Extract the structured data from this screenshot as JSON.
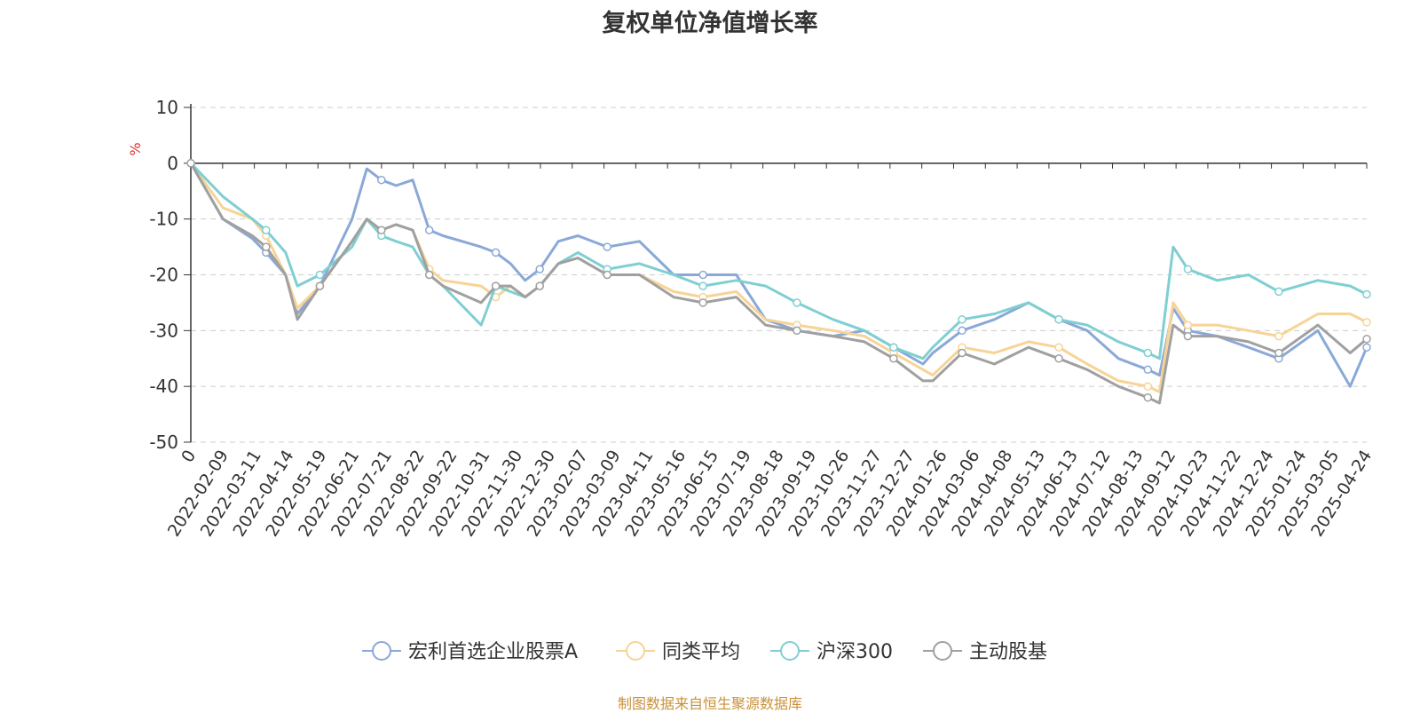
{
  "title": "复权单位净值增长率",
  "source": "制图数据来自恒生聚源数据库",
  "chart_data": {
    "type": "line",
    "title": "复权单位净值增长率",
    "ylabel": "%",
    "ylim": [
      -50,
      10
    ],
    "yticks": [
      10,
      0,
      -10,
      -20,
      -30,
      -40,
      -50
    ],
    "grid": true,
    "legend_position": "bottom-center",
    "xlim": [
      "2022-01-07",
      "2025-04-24"
    ],
    "x_tick_labels": [
      "0",
      "2022-02-09",
      "2022-03-11",
      "2022-04-14",
      "2022-05-19",
      "2022-06-21",
      "2022-07-21",
      "2022-08-22",
      "2022-09-22",
      "2022-10-31",
      "2022-11-30",
      "2022-12-30",
      "2023-02-07",
      "2023-03-09",
      "2023-04-11",
      "2023-05-16",
      "2023-06-15",
      "2023-07-19",
      "2023-08-18",
      "2023-09-19",
      "2023-10-26",
      "2023-11-27",
      "2023-12-27",
      "2024-01-26",
      "2024-03-06",
      "2024-04-08",
      "2024-05-13",
      "2024-06-13",
      "2024-07-12",
      "2024-08-13",
      "2024-09-12",
      "2024-10-23",
      "2024-11-22",
      "2024-12-24",
      "2025-01-24",
      "2025-03-05",
      "2025-04-24"
    ],
    "x": [
      "2022-01-07",
      "2022-02-09",
      "2022-03-11",
      "2022-03-25",
      "2022-04-14",
      "2022-04-26",
      "2022-05-19",
      "2022-06-21",
      "2022-07-06",
      "2022-07-21",
      "2022-08-05",
      "2022-08-22",
      "2022-09-08",
      "2022-09-22",
      "2022-10-31",
      "2022-11-15",
      "2022-11-30",
      "2022-12-15",
      "2022-12-30",
      "2023-01-18",
      "2023-02-07",
      "2023-03-09",
      "2023-04-11",
      "2023-05-16",
      "2023-06-15",
      "2023-07-19",
      "2023-08-18",
      "2023-09-19",
      "2023-10-26",
      "2023-11-27",
      "2023-12-27",
      "2024-01-26",
      "2024-02-05",
      "2024-03-06",
      "2024-04-08",
      "2024-05-13",
      "2024-06-13",
      "2024-07-12",
      "2024-08-13",
      "2024-09-12",
      "2024-09-24",
      "2024-10-08",
      "2024-10-23",
      "2024-11-22",
      "2024-12-24",
      "2025-01-24",
      "2025-03-05",
      "2025-04-07",
      "2025-04-24"
    ],
    "series": [
      {
        "name": "宏利首选企业股票A",
        "color": "#8aa8d8",
        "values": [
          0,
          -10,
          -13.5,
          -16,
          -20,
          -27,
          -22,
          -10,
          -1,
          -3,
          -4,
          -3,
          -12,
          -13,
          -15,
          -16,
          -18,
          -21,
          -19,
          -14,
          -13,
          -15,
          -14,
          -20,
          -20,
          -20,
          -28,
          -30,
          -31,
          -30,
          -33,
          -36,
          -34,
          -30,
          -28,
          -25,
          -28,
          -30,
          -35,
          -37,
          -38,
          -26,
          -30,
          -31,
          -33,
          -35,
          -30,
          -40,
          -33
        ]
      },
      {
        "name": "同类平均",
        "color": "#f7d396",
        "values": [
          0,
          -8,
          -10,
          -13,
          -20,
          -26,
          -22,
          -14,
          -10,
          -12,
          -11,
          -12,
          -19,
          -21,
          -22,
          -24,
          -22,
          -24,
          -22,
          -18,
          -17,
          -20,
          -20,
          -23,
          -24,
          -23,
          -28,
          -29,
          -30,
          -31,
          -34,
          -37,
          -38,
          -33,
          -34,
          -32,
          -33,
          -36,
          -39,
          -40,
          -41,
          -25,
          -29,
          -29,
          -30,
          -31,
          -27,
          -27,
          -28.5
        ]
      },
      {
        "name": "沪深300",
        "color": "#7fcfd2",
        "values": [
          0,
          -6,
          -10,
          -12,
          -16,
          -22,
          -20,
          -15,
          -10,
          -13,
          -14,
          -15,
          -20,
          -22,
          -29,
          -22,
          -23,
          -24,
          -22,
          -18,
          -16,
          -19,
          -18,
          -20,
          -22,
          -21,
          -22,
          -25,
          -28,
          -30,
          -33,
          -35,
          -33,
          -28,
          -27,
          -25,
          -28,
          -29,
          -32,
          -34,
          -35,
          -15,
          -19,
          -21,
          -20,
          -23,
          -21,
          -22,
          -23.5
        ]
      },
      {
        "name": "主动股基",
        "color": "#a0a0a0",
        "values": [
          0,
          -10,
          -13,
          -15,
          -20,
          -28,
          -22,
          -14,
          -10,
          -12,
          -11,
          -12,
          -20,
          -22,
          -25,
          -22,
          -22,
          -24,
          -22,
          -18,
          -17,
          -20,
          -20,
          -24,
          -25,
          -24,
          -29,
          -30,
          -31,
          -32,
          -35,
          -39,
          -39,
          -34,
          -36,
          -33,
          -35,
          -37,
          -40,
          -42,
          -43,
          -29,
          -31,
          -31,
          -32,
          -34,
          -29,
          -34,
          -31.5
        ]
      }
    ]
  }
}
